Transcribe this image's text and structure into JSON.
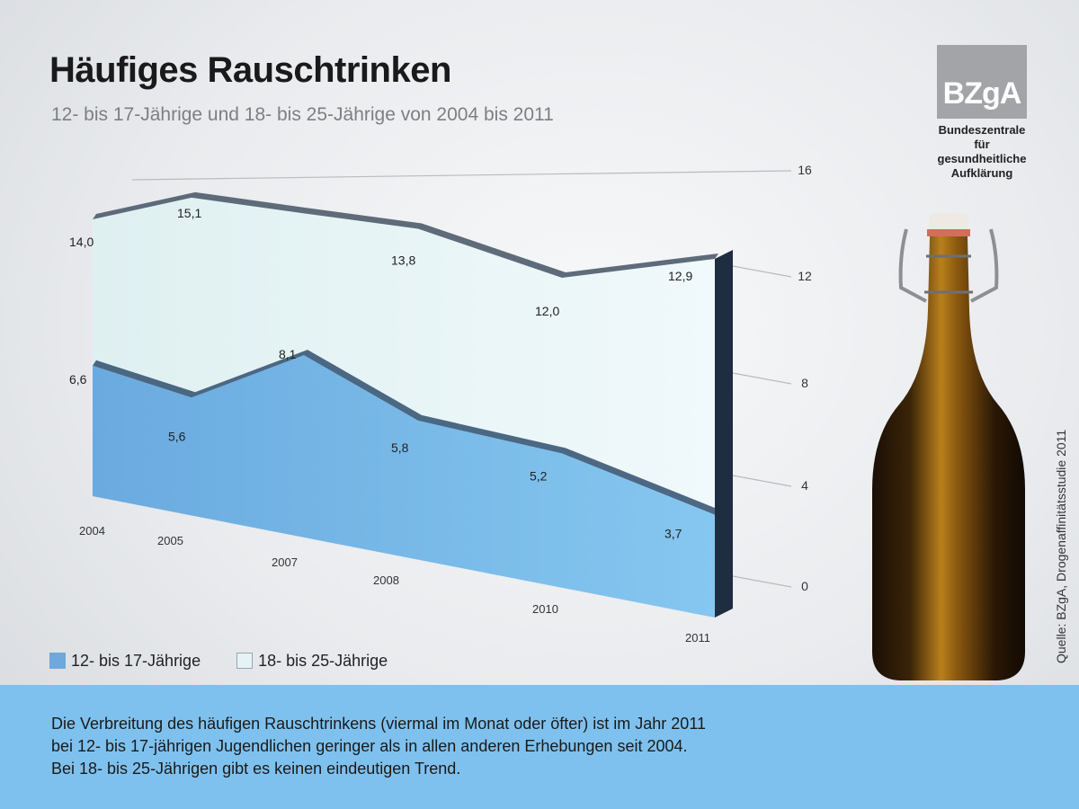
{
  "header": {
    "title": "Häufiges Rauschtrinken",
    "subtitle": "12- bis 17-Jährige und 18- bis 25-Jährige von 2004 bis 2011"
  },
  "logo": {
    "abbr": "BZgA",
    "lines": [
      "Bundeszentrale",
      "für",
      "gesundheitliche",
      "Aufklärung"
    ]
  },
  "chart_data": {
    "type": "area",
    "x": [
      "2004",
      "2005",
      "2007",
      "2008",
      "2010",
      "2011"
    ],
    "series": [
      {
        "name": "12- bis 17-Jährige",
        "values": [
          6.6,
          5.6,
          8.1,
          5.8,
          5.2,
          3.7
        ],
        "value_labels": [
          "6,6",
          "5,6",
          "8,1",
          "5,8",
          "5,2",
          "3,7"
        ]
      },
      {
        "name": "18- bis 25-Jährige",
        "values": [
          14.0,
          15.1,
          14.4,
          13.8,
          12.0,
          12.9
        ],
        "value_labels": [
          "14,0",
          "15,1",
          "",
          "13,8",
          "12,0",
          "12,9"
        ]
      }
    ],
    "yticks": [
      0,
      4,
      8,
      12,
      16
    ],
    "ylim": [
      0,
      16
    ],
    "grid": true,
    "legend": "bottom-left",
    "colors": {
      "youth": "#7bbde9",
      "young_adults": "#e6f4f6"
    }
  },
  "legend": {
    "items": [
      {
        "label": "12- bis 17-Jährige",
        "color": "#6fa8dc"
      },
      {
        "label": "18- bis 25-Jährige",
        "color": "#e4f3f5"
      }
    ]
  },
  "source": "Quelle: BZgA, Drogenaffinitätsstudie 2011",
  "caption": {
    "lines": [
      "Die Verbreitung des häufigen Rauschtrinkens (viermal im Monat oder öfter) ist im Jahr 2011",
      "bei 12- bis 17-jährigen Jugendlichen geringer als in allen anderen Erhebungen seit 2004.",
      "Bei 18- bis 25-Jährigen gibt es keinen eindeutigen Trend."
    ]
  }
}
